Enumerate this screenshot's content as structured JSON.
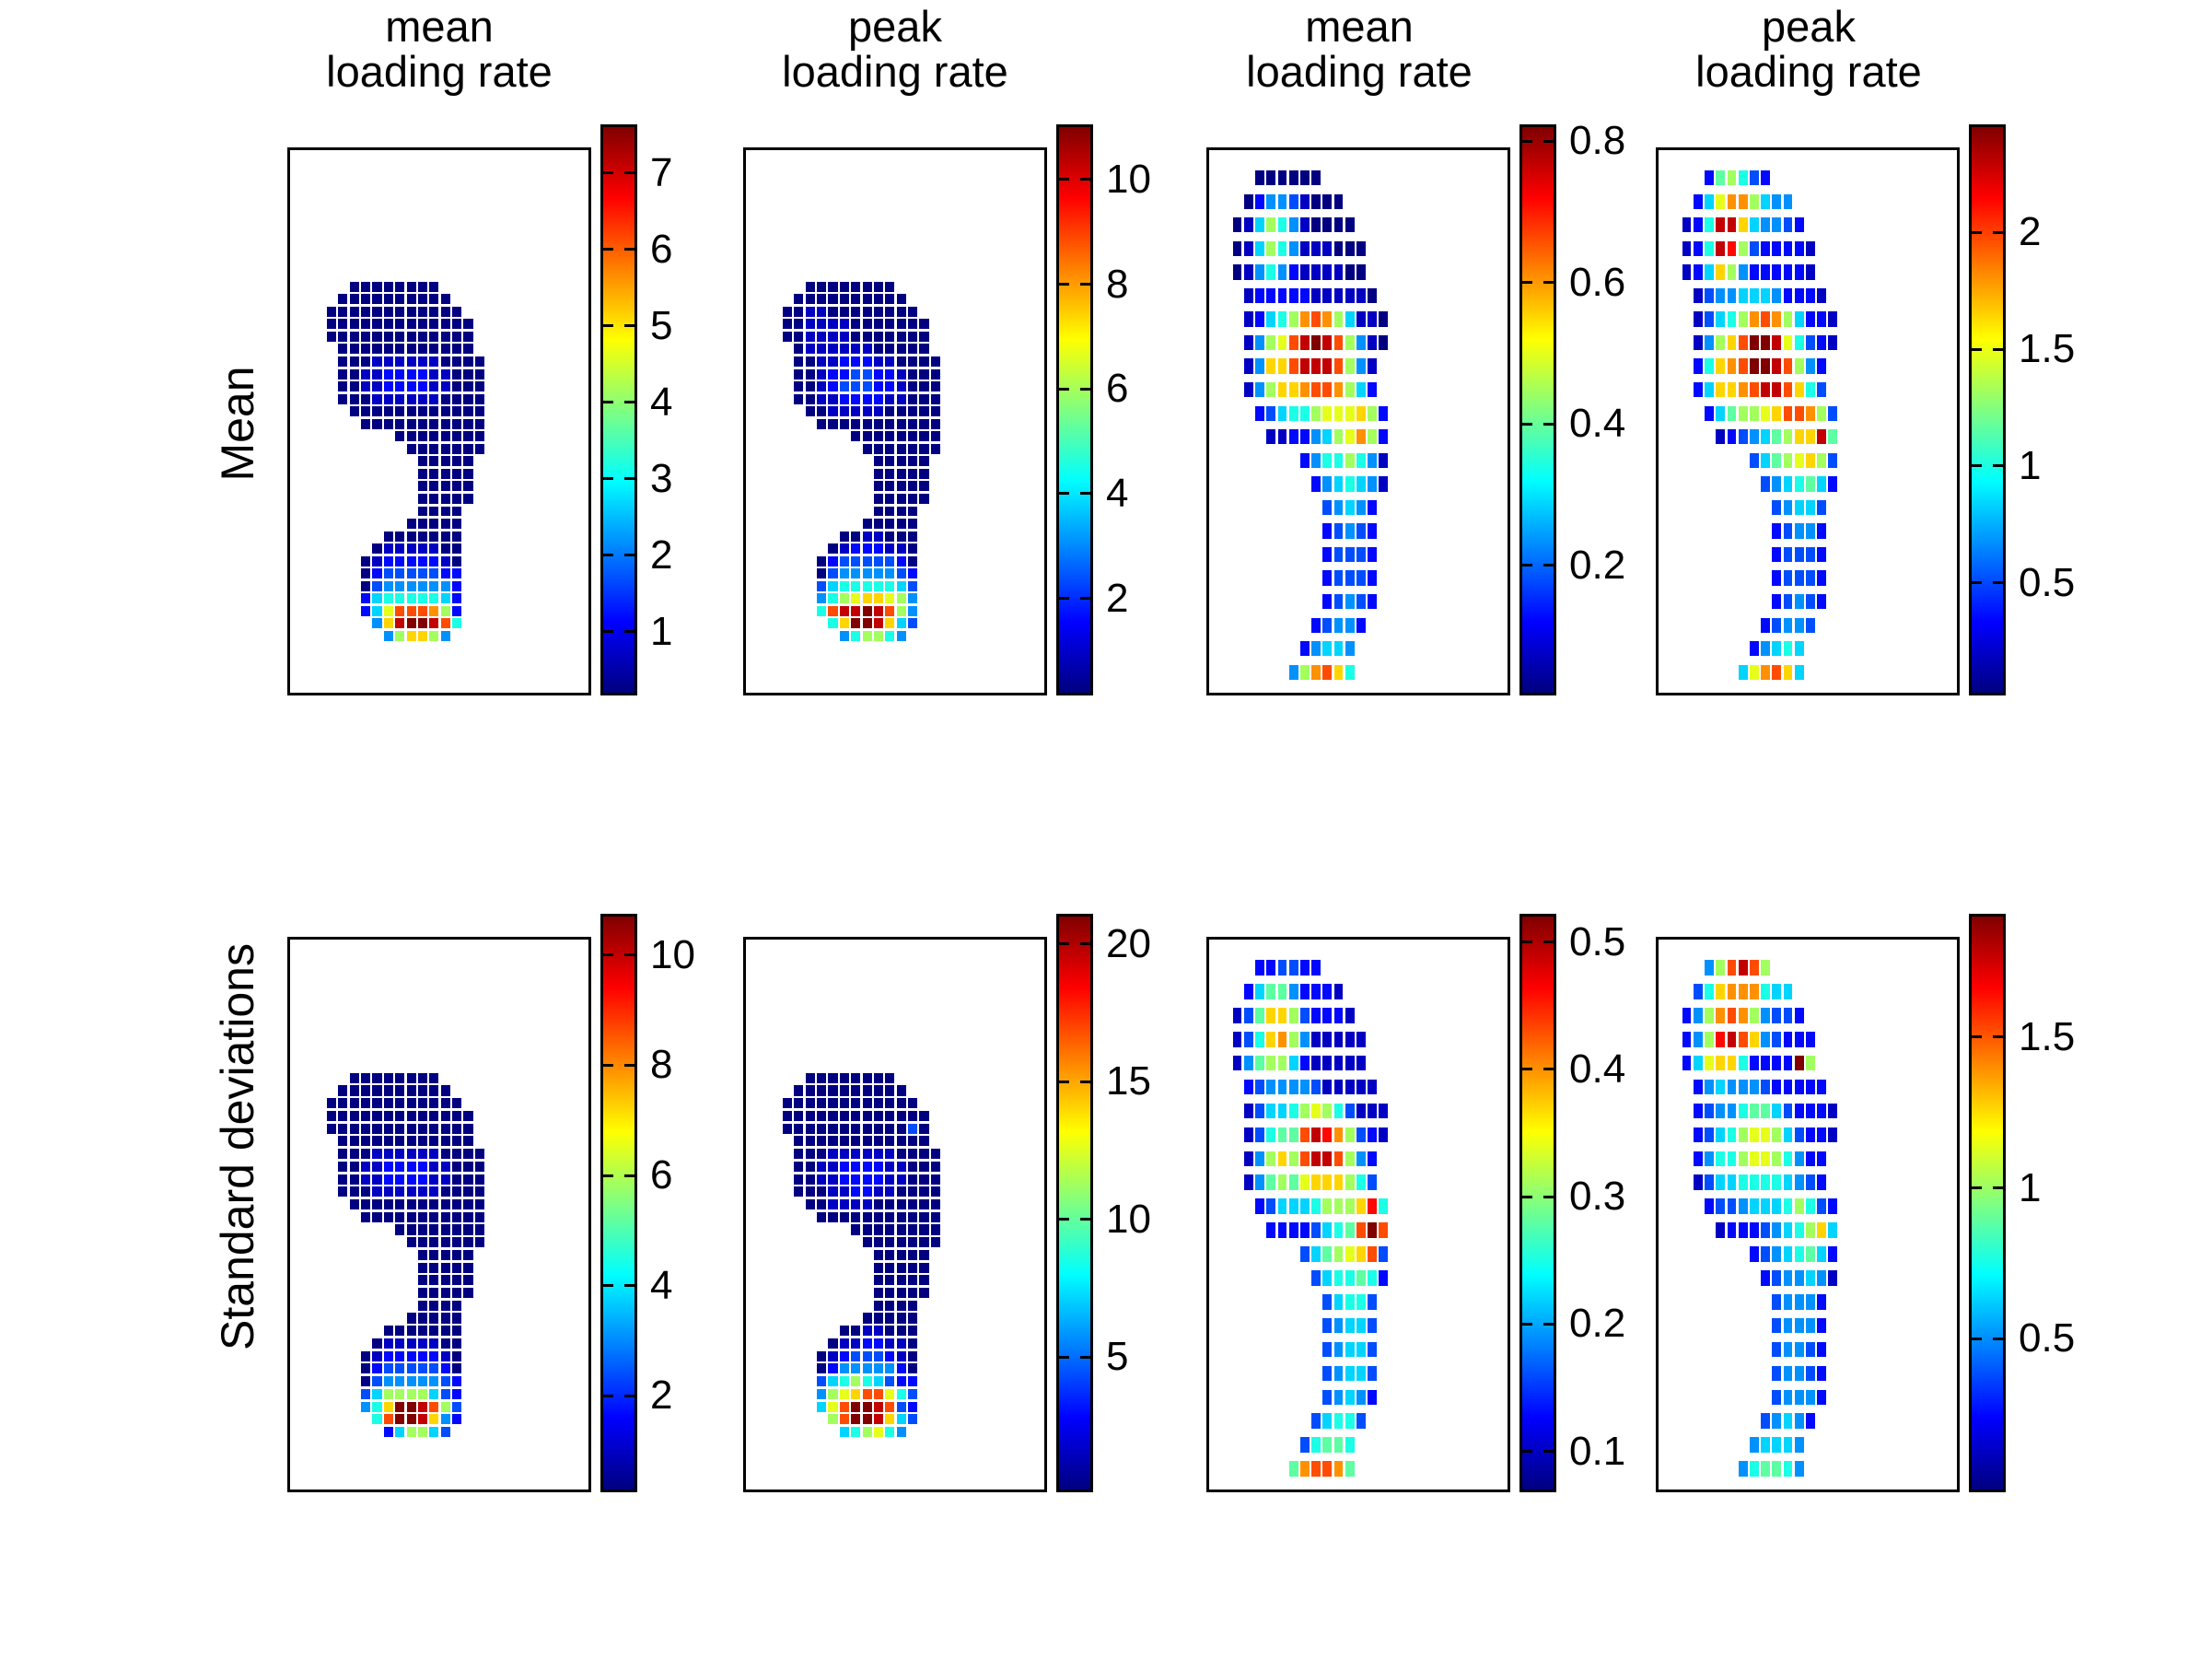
{
  "figure": {
    "background": "#ffffff",
    "colormap": "jet",
    "panel_grid": "2 rows x 4 columns"
  },
  "row_labels": [
    "Mean",
    "Standard deviations"
  ],
  "column_titles": [
    {
      "line1": "mean",
      "line2": "loading rate"
    },
    {
      "line1": "peak",
      "line2": "loading rate"
    },
    {
      "line1": "mean",
      "line2": "loading rate"
    },
    {
      "line1": "peak",
      "line2": "loading rate"
    }
  ],
  "value_encoding": {
    "grid_chars": "hex level 0-f mapped to jet colormap; cell value = cmin + (level/15)*(cmax-cmin)",
    "empty_char": ".",
    "orientation": "rows top to bottom (toes at top, heel at bottom)"
  },
  "chart_data": [
    {
      "id": "mean-mean-loading-rate",
      "type": "heatmap",
      "row_label": "Mean",
      "column_title": "mean loading rate",
      "panel": {
        "row": 0,
        "col": 0
      },
      "mask": "A",
      "colorbar": {
        "ticks": [
          7,
          6,
          5,
          4,
          3,
          2,
          1
        ],
        "cmin": 0.2,
        "cmax": 7.6
      },
      "grid": [
        "....00000000....",
        "...0000000000...",
        "..000000000000..",
        "..0000000000000.",
        "..0000000000000.",
        "...000000000000.",
        "...0001111110000",
        "...0011222211000",
        "...0011222211000",
        "...0001111110000",
        "....000000000000",
        ".....00000000000",
        "........00000000",
        ".........0000000",
        "..........00000.",
        "..........00000.",
        "..........00000.",
        "..........00000.",
        "..........0000..",
        ".........00000..",
        ".......0000000..",
        "......01111100..",
        ".....012222210..",
        ".....023333322..",
        ".....034444442..",
        ".....256666652..",
        ".....259cccb82..",
        "......4aeffec6..",
        ".......48aa84..."
      ]
    },
    {
      "id": "mean-peak-loading-rate",
      "type": "heatmap",
      "row_label": "Mean",
      "column_title": "peak loading rate",
      "panel": {
        "row": 0,
        "col": 1
      },
      "mask": "A",
      "colorbar": {
        "ticks": [
          10,
          8,
          6,
          4,
          2
        ],
        "cmin": 0.2,
        "cmax": 11.0
      },
      "grid": [
        "....00000000....",
        "...0000000000...",
        "..001100000000..",
        "..0011110000000.",
        "..0011110000000.",
        "...011111100000.",
        "...0011222110000",
        "...0012233221000",
        "...0012333221000",
        "...0011222211000",
        "....001111100000",
        ".....00000000000",
        "........00000000",
        ".........0000000",
        "..........00000.",
        "..........00000.",
        "..........00000.",
        "..........00000.",
        "..........0000..",
        ".........00000..",
        ".......0011000..",
        "......01222110..",
        ".....023333320..",
        ".....034444432..",
        ".....356666653..",
        ".....4689aa984..",
        ".....6ceefec84..",
        "......6affea53..",
        ".......468864..."
      ]
    },
    {
      "id": "mean-mean-loading-rate-normalized",
      "type": "heatmap",
      "row_label": "Mean",
      "column_title": "mean loading rate",
      "panel": {
        "row": 0,
        "col": 2
      },
      "mask": "B",
      "colorbar": {
        "ticks": [
          0.8,
          0.6,
          0.4,
          0.2
        ],
        "cmin": 0.02,
        "cmax": 0.82
      },
      "grid": [
        "...000000......",
        "..024431000....",
        ".01586410000...",
        ".015864111000..",
        ".014642111100..",
        "..122222111110.",
        "..12568bcb85110",
        "..1489cefec8410",
        "..14aaceeec841.",
        "..148aabccb852.",
        "...235668999a82",
        "....11224589b82",
        ".......24668641",
        "........2456541",
        ".........34542.",
        ".........23432.",
        ".........23332.",
        ".........23332.",
        ".........23432.",
        "........23442..",
        ".......24554...",
        "......48bca6..."
      ]
    },
    {
      "id": "mean-peak-loading-rate-normalized",
      "type": "heatmap",
      "row_label": "Mean",
      "column_title": "peak loading rate",
      "panel": {
        "row": 0,
        "col": 3
      },
      "mask": "B",
      "colorbar": {
        "ticks": [
          2,
          1.5,
          1,
          0.5
        ],
        "cmin": 0.03,
        "cmax": 2.45
      },
      "grid": [
        "...278632......",
        "..259bb8544....",
        ".126eea54432...",
        ".126ed8322221..",
        ".125a84222221..",
        "..134455542221.",
        "..13568bcb85221",
        "..148acffe96321",
        "..26abcffec842.",
        "..25aabceeca63.",
        "...257889accb83",
        "....1234578aae7",
        ".......35789a83",
        "........3456752",
        ".........34553.",
        ".........23442.",
        ".........23332.",
        ".........23332.",
        ".........23432.",
        "........23443..",
        ".......24565...",
        "......59bca5..."
      ]
    },
    {
      "id": "sd-mean-loading-rate",
      "type": "heatmap",
      "row_label": "Standard deviations",
      "column_title": "mean loading rate",
      "panel": {
        "row": 1,
        "col": 0
      },
      "mask": "A",
      "colorbar": {
        "ticks": [
          10,
          8,
          6,
          4,
          2
        ],
        "cmin": 0.3,
        "cmax": 10.7
      },
      "grid": [
        "....00000000....",
        "...0000000000...",
        "..000000000000..",
        "..0000000000000.",
        "..0000000000000.",
        "...000000000000.",
        "...0001111110000",
        "...0011222211000",
        "...0011222211000",
        "...0001111110000",
        "....000000000000",
        ".....00000000000",
        "........00000000",
        ".........0000000",
        "..........00000.",
        "..........00000.",
        "..........00000.",
        "..........00000.",
        "..........0000..",
        ".........00000..",
        ".......0000000..",
        "......01111100..",
        ".....012222210..",
        ".....023333320..",
        ".....034444432..",
        ".....358888532..",
        ".....46affec83..",
        "......6cffea42..",
        ".......258853..."
      ]
    },
    {
      "id": "sd-peak-loading-rate",
      "type": "heatmap",
      "row_label": "Standard deviations",
      "column_title": "peak loading rate",
      "panel": {
        "row": 1,
        "col": 1
      },
      "mask": "A",
      "colorbar": {
        "ticks": [
          20,
          15,
          10,
          5
        ],
        "cmin": 0.2,
        "cmax": 21.0
      },
      "grid": [
        "....00000000....",
        "...0000000000...",
        "..000000000000..",
        "..0000000000000.",
        "..0000000000030.",
        "...000000000000.",
        "...0001111110000",
        "...0011222211000",
        "...0011222211000",
        "...0001122110000",
        "....001111000000",
        ".....00000000000",
        "........00000000",
        ".........0000000",
        "..........00000.",
        "..........00000.",
        "..........00000.",
        "..........00000.",
        "..........0000..",
        ".........00000..",
        ".......0011000..",
        "......01122110..",
        ".....012333210..",
        ".....024444420..",
        ".....356865322..",
        ".....489acc963..",
        ".....59cffec32..",
        "......8cffea53..",
        ".......568964..."
      ]
    },
    {
      "id": "sd-mean-loading-rate-normalized",
      "type": "heatmap",
      "row_label": "Standard deviations",
      "column_title": "mean loading rate",
      "panel": {
        "row": 1,
        "col": 2
      },
      "mask": "B",
      "colorbar": {
        "ticks": [
          0.5,
          0.4,
          0.3,
          0.2,
          0.1
        ],
        "cmin": 0.07,
        "cmax": 0.52
      },
      "grid": [
        "...223322......",
        "..257742221....",
        ".137aa832221...",
        ".136ab8411111..",
        ".147885211111..",
        "..234444311111.",
        "..1355689863111",
        "..13677cedb8321",
        "..148a8ceec842.",
        "..147879aaa863.",
        "...235556888ad6",
        "....22223567cfc",
        ".......35789ac3",
        "........3566762",
        ".........35663.",
        ".........34553.",
        ".........34553.",
        ".........34553.",
        ".........34542.",
        "........35663..",
        ".......36776...",
        "......7bccb7..."
      ]
    },
    {
      "id": "sd-peak-loading-rate-normalized",
      "type": "heatmap",
      "row_label": "Standard deviations",
      "column_title": "peak loading rate",
      "panel": {
        "row": 1,
        "col": 3
      },
      "mask": "B",
      "colorbar": {
        "ticks": [
          1.5,
          1,
          0.5
        ],
        "cmin": 0.0,
        "cmax": 1.9
      },
      "grid": [
        "...48cec8......",
        "..36abbb655....",
        ".248bcb84332...",
        ".248deca43222..",
        ".259aa62222f8..",
        "..245444322222.",
        "..2344677532221",
        "..2356899853221",
        "..246689986422.",
        "..135566665432.",
        "...233455568632",
        "....122234568a5",
        ".......23456752",
        "........2344541",
        ".........34442.",
        ".........34442.",
        ".........34432.",
        ".........34432.",
        ".........34442.",
        "........34542..",
        ".......45554...",
        "......467764..."
      ]
    }
  ]
}
